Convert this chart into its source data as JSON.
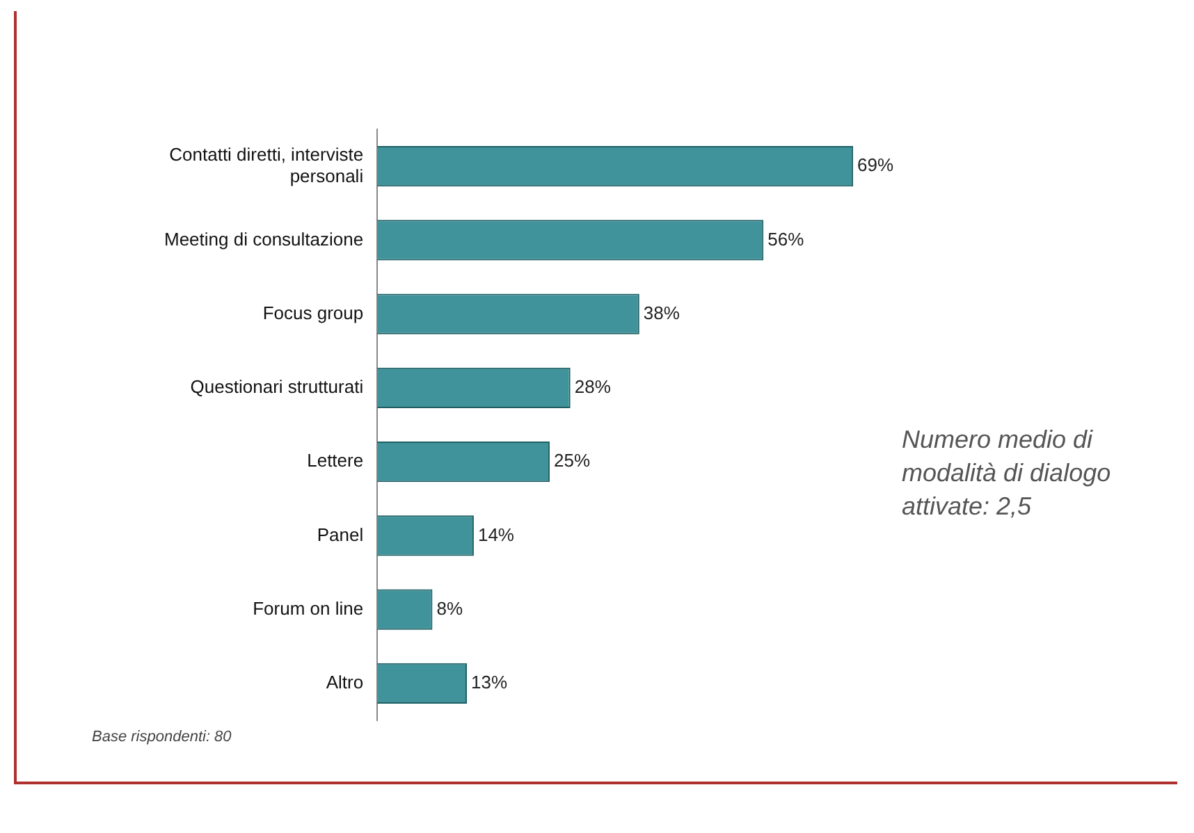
{
  "chart_data": {
    "type": "bar",
    "orientation": "horizontal",
    "categories": [
      "Contatti diretti, interviste personali",
      "Meeting di consultazione",
      "Focus group",
      "Questionari strutturati",
      "Lettere",
      "Panel",
      "Forum on line",
      "Altro"
    ],
    "values": [
      69,
      56,
      38,
      28,
      25,
      14,
      8,
      13
    ],
    "value_labels": [
      "69%",
      "56%",
      "38%",
      "28%",
      "25%",
      "14%",
      "8%",
      "13%"
    ],
    "color": "#40939a",
    "annotations": [
      "Numero medio di modalità di dialogo attivate: 2,5",
      "Base rispondenti: 80"
    ],
    "grid": false,
    "legend": false
  }
}
